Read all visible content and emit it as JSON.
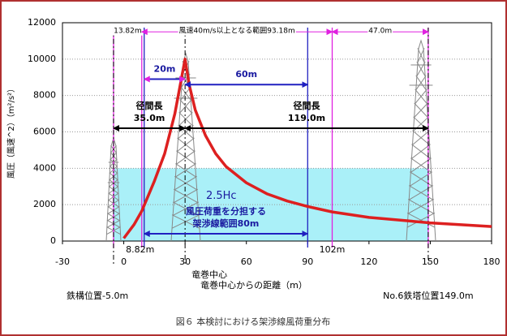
{
  "chart_data": {
    "type": "line",
    "y_label": "風圧（風速^2）（m²/s²）",
    "x_label": "竜巻中心からの距離（m）",
    "caption": "図６ 本検討における架渉線風荷重分布",
    "x": [
      0,
      5,
      8.82,
      15,
      20,
      25,
      28,
      30,
      32,
      35,
      40,
      45,
      50,
      60,
      70,
      80,
      90,
      102,
      120,
      150,
      180
    ],
    "series": [
      {
        "color": "#dd2020",
        "values": [
          150,
          900,
          1650,
          3300,
          4800,
          7000,
          8800,
          10000,
          8600,
          7200,
          5800,
          4800,
          4100,
          3200,
          2600,
          2200,
          1900,
          1600,
          1300,
          1000,
          800
        ]
      }
    ],
    "xlim": [
      -30,
      180
    ],
    "xticks": [
      -30,
      0,
      30,
      60,
      90,
      120,
      150,
      180
    ],
    "ylim": [
      0,
      12000
    ],
    "yticks": [
      0,
      2000,
      4000,
      6000,
      8000,
      10000,
      12000
    ],
    "grid": true,
    "band": {
      "x": [
        -5,
        149
      ],
      "y": [
        0,
        4000
      ],
      "color": "#aaf0f8",
      "label": "2.5Hc"
    },
    "vlines": [
      {
        "x": -5,
        "color": "#e020e0"
      },
      {
        "x": 8.82,
        "color": "#e020e0"
      },
      {
        "x": 102,
        "color": "#e020e0"
      },
      {
        "x": 149,
        "color": "#e020e0"
      },
      {
        "x": 10,
        "color": "#2020c0"
      },
      {
        "x": 90,
        "color": "#2020c0"
      },
      {
        "x": 30,
        "color": "#000000",
        "dashed": true
      },
      {
        "x": -5,
        "color": "#000000",
        "dashed": true
      },
      {
        "x": 149,
        "color": "#000000",
        "dashed": true
      }
    ],
    "spans": [
      {
        "x": [
          -5,
          8.82
        ],
        "y": 11500,
        "label": "13.82m"
      },
      {
        "x": [
          8.82,
          102
        ],
        "y": 11500,
        "label": "風速40m/s以上となる範囲93.18m"
      },
      {
        "x": [
          102,
          149
        ],
        "y": 11500,
        "label": "47.0m"
      }
    ],
    "arrows": [
      {
        "x": [
          10,
          30
        ],
        "y": 8900,
        "color": "#2020c0",
        "labels": [
          "20m"
        ]
      },
      {
        "x": [
          30,
          90
        ],
        "y": 8600,
        "color": "#2020c0",
        "labels": [
          "60m"
        ]
      },
      {
        "x": [
          -5,
          30
        ],
        "y": 6200,
        "color": "#000000",
        "labels": [
          "径間長",
          "35.0m"
        ]
      },
      {
        "x": [
          30,
          149
        ],
        "y": 6200,
        "color": "#000000",
        "labels": [
          "径間長",
          "119.0m"
        ]
      },
      {
        "x": [
          10,
          90
        ],
        "y": 400,
        "color": "#2020c0",
        "labels": [
          "風圧荷重を分担する",
          "架渉線範囲80m"
        ]
      }
    ],
    "markers": [
      {
        "x": 8.82,
        "label": "8.82m"
      },
      {
        "x": 102,
        "label": "102m"
      },
      {
        "x": 30,
        "label": "竜巻中心"
      },
      {
        "x": -5,
        "label": "鉄構位置-5.0m"
      },
      {
        "x": 149,
        "label": "No.6鉄塔位置149.0m"
      }
    ]
  }
}
